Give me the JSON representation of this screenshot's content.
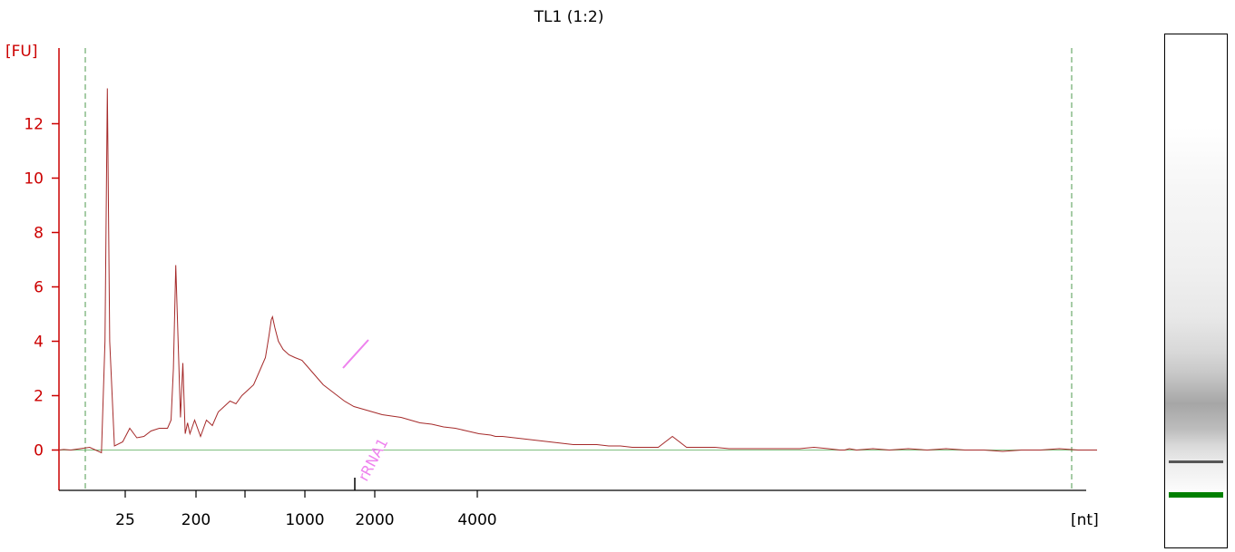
{
  "chart_data": {
    "type": "line",
    "title": "TL1 (1:2)",
    "ylabel": "[FU]",
    "xlabel": "[nt]",
    "ylim": [
      -1.5,
      14.8
    ],
    "yticks": [
      "0",
      "2",
      "4",
      "6",
      "8",
      "10",
      "12"
    ],
    "xtick_labels": [
      "25",
      "200",
      "1000",
      "2000",
      "4000"
    ],
    "annotation": "rRNA1",
    "grid": false,
    "colors": {
      "trace": "#a52a2a",
      "axis": "#cc0000",
      "baseline": "#7fbf7f",
      "window": "#4c9a4c",
      "annotation": "#ee82ee",
      "marker_band": "#008000"
    },
    "series": [
      {
        "x": [
          0,
          0.2,
          0.5,
          0.9,
          1.3,
          1.55,
          1.8,
          1.95,
          2.05,
          2.15,
          2.35,
          2.7,
          3.0,
          3.3,
          3.6,
          3.9,
          4.25,
          4.6,
          4.75,
          4.85,
          4.95,
          5.05,
          5.15,
          5.25,
          5.35,
          5.45,
          5.55,
          5.75,
          6.0,
          6.25,
          6.5,
          6.75,
          7.0,
          7.25,
          7.5,
          7.75,
          8.0,
          8.25,
          8.55,
          8.75,
          8.9,
          9.0,
          9.05,
          9.15,
          9.3,
          9.5,
          9.75,
          10.0,
          10.3,
          10.6,
          10.9,
          11.2,
          11.5,
          11.8,
          12.1,
          12.5,
          12.9,
          13.3,
          13.7,
          14.1,
          14.5,
          14.9,
          15.3,
          15.8,
          16.3,
          16.8,
          17.3,
          17.8,
          18.3,
          18.5,
          18.8,
          19.3,
          19.8,
          20.3,
          20.8,
          21.3,
          21.8,
          22.3,
          22.8,
          23.3,
          23.8,
          24.3,
          24.8,
          25.4,
          26.0,
          26.6,
          27.2,
          27.8,
          28.4,
          29.0,
          29.6,
          30.2,
          30.8,
          31.4,
          32.0,
          32.6,
          33.1,
          33.3,
          33.5,
          33.8,
          34.5,
          35.2,
          36.0,
          36.8,
          37.6,
          38.4,
          39.2,
          40.0,
          40.8,
          41.6,
          42.4,
          43.2,
          44.0
        ],
        "y": [
          0,
          0.02,
          0,
          0.05,
          0.1,
          0,
          -0.1,
          4.0,
          13.3,
          4.0,
          0.15,
          0.3,
          0.8,
          0.45,
          0.5,
          0.7,
          0.8,
          0.8,
          1.1,
          3.0,
          6.8,
          4.0,
          1.2,
          3.2,
          0.6,
          1.0,
          0.6,
          1.1,
          0.5,
          1.1,
          0.9,
          1.4,
          1.6,
          1.8,
          1.7,
          2.0,
          2.2,
          2.4,
          3.0,
          3.4,
          4.2,
          4.8,
          4.9,
          4.5,
          4.0,
          3.7,
          3.5,
          3.4,
          3.3,
          3.0,
          2.7,
          2.4,
          2.2,
          2.0,
          1.8,
          1.6,
          1.5,
          1.4,
          1.3,
          1.25,
          1.2,
          1.1,
          1.0,
          0.95,
          0.85,
          0.8,
          0.7,
          0.6,
          0.55,
          0.5,
          0.5,
          0.45,
          0.4,
          0.35,
          0.3,
          0.25,
          0.2,
          0.2,
          0.2,
          0.15,
          0.15,
          0.1,
          0.1,
          0.1,
          0.5,
          0.1,
          0.1,
          0.1,
          0.05,
          0.05,
          0.05,
          0.05,
          0.05,
          0.05,
          0.1,
          0.05,
          0.0,
          0.0,
          0.05,
          0.0,
          0.05,
          0.0,
          0.05,
          0.0,
          0.05,
          0.0,
          0.0,
          -0.05,
          0.0,
          0.0,
          0.05,
          0.0,
          0.0
        ]
      }
    ]
  }
}
